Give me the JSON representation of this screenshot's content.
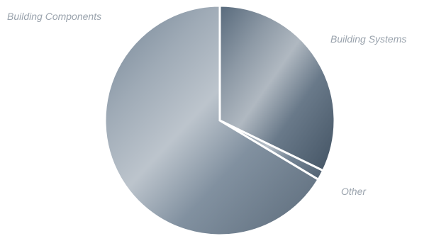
{
  "chart_data": {
    "type": "pie",
    "title": "",
    "categories": [
      "Building Systems",
      "Other",
      "Building Components"
    ],
    "values": [
      32.2,
      1.4,
      66.4
    ],
    "start_angle_deg": 0,
    "direction": "clockwise",
    "exploded": false,
    "legend": "none",
    "label_color": "#9aa3ad",
    "slice_colors": [
      "#4f6275",
      "#5d7083",
      "#6b7d8f"
    ],
    "highlight_color": "#c9d0d8"
  }
}
